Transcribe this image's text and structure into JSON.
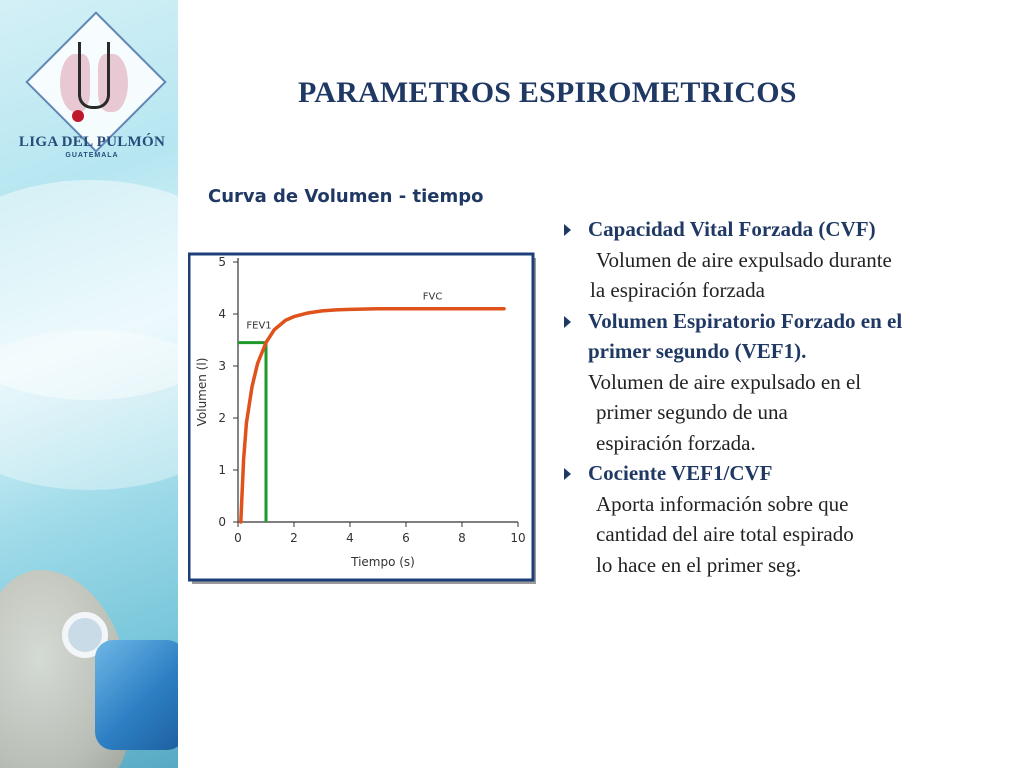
{
  "slide": {
    "title": "PARAMETROS ESPIROMETRICOS",
    "subtitle": "Curva de Volumen - tiempo"
  },
  "logo": {
    "name": "LIGA DEL PULMÓN",
    "subname": "GUATEMALA"
  },
  "bullets": [
    {
      "head": [
        "Capacidad Vital Forzada (CVF)"
      ],
      "body": [
        "Volumen de aire expulsado durante",
        "la espiración forzada"
      ]
    },
    {
      "head": [
        "Volumen Espiratorio Forzado en el",
        "primer segundo (VEF1)."
      ],
      "body": [
        "Volumen de aire expulsado en el",
        "primer segundo de una",
        "espiración forzada."
      ]
    },
    {
      "head": [
        "Cociente VEF1/CVF"
      ],
      "body": [
        "Aporta información sobre que",
        "cantidad del aire total espirado",
        "lo hace en el  primer  seg."
      ]
    }
  ],
  "chart_data": {
    "type": "line",
    "xlabel": "Tiempo (s)",
    "ylabel": "Volumen (l)",
    "xlim": [
      0,
      10
    ],
    "ylim": [
      0,
      5
    ],
    "xticks": [
      0,
      2,
      4,
      6,
      8,
      10
    ],
    "yticks": [
      0,
      1,
      2,
      3,
      4,
      5
    ],
    "grid": false,
    "series": [
      {
        "name": "",
        "x": [
          0.1,
          0.2,
          0.3,
          0.5,
          0.7,
          1.0,
          1.3,
          1.7,
          2.0,
          2.5,
          3.0,
          3.5,
          4.0,
          5.0,
          6.0,
          7.0,
          8.0,
          9.0,
          9.5
        ],
        "y": [
          0.0,
          1.2,
          1.9,
          2.6,
          3.05,
          3.45,
          3.7,
          3.88,
          3.95,
          4.02,
          4.06,
          4.08,
          4.09,
          4.1,
          4.1,
          4.1,
          4.1,
          4.1,
          4.1
        ],
        "color": "#e0521b"
      }
    ],
    "annotations": [
      {
        "text": "FEV1",
        "x": 0.3,
        "y": 3.72
      },
      {
        "text": "FVC",
        "x": 6.6,
        "y": 4.28
      }
    ],
    "fev1_marker": {
      "x": 1.0,
      "y": 3.45,
      "color": "#1e9a2a"
    }
  }
}
